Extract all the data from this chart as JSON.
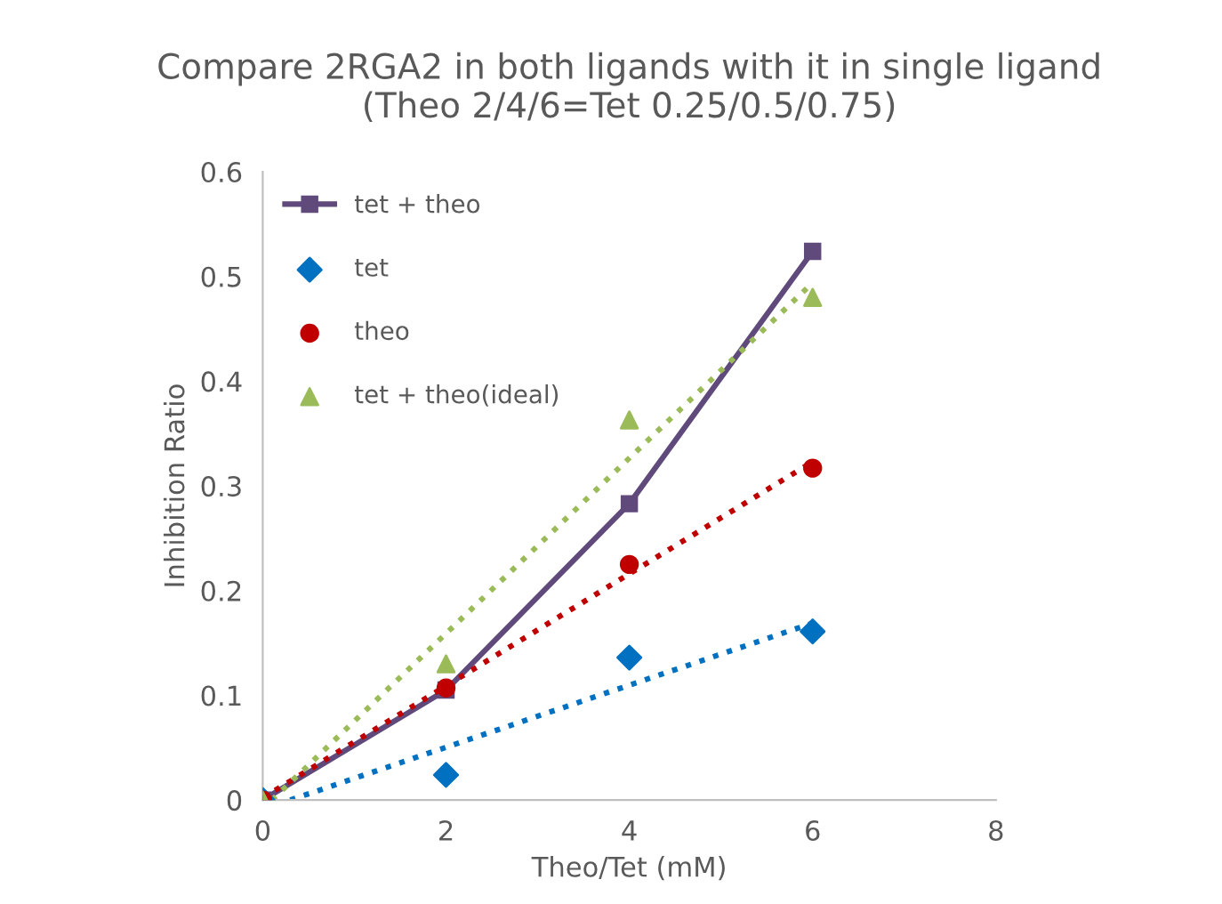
{
  "chart_data": {
    "type": "scatter",
    "title": "Compare 2RGA2 in both ligands with it in single ligand\n(Theo 2/4/6=Tet 0.25/0.5/0.75)",
    "xlabel": "Theo/Tet (mM)",
    "ylabel": "Inhibition Ratio",
    "xlim": [
      0,
      8
    ],
    "xticks": [
      0,
      2,
      4,
      6,
      8
    ],
    "ylim": [
      0,
      0.6
    ],
    "yticks": [
      0,
      0.1,
      0.2,
      0.3,
      0.4,
      0.5,
      0.6
    ],
    "grid": false,
    "legend": "top left",
    "series": [
      {
        "name": "tet + theo",
        "type": "line",
        "marker": "square",
        "line_style": "solid",
        "color": "#604a7b",
        "x": [
          0,
          2,
          4,
          6
        ],
        "values": [
          0,
          0.105,
          0.283,
          0.524
        ]
      },
      {
        "name": "tet",
        "marker": "diamond",
        "color": "#0070c0",
        "x": [
          0,
          2,
          4,
          6
        ],
        "values": [
          0,
          0.024,
          0.136,
          0.161
        ]
      },
      {
        "name": "theo",
        "marker": "circle",
        "color": "#c00000",
        "x": [
          0,
          2,
          4,
          6
        ],
        "values": [
          0,
          0.107,
          0.225,
          0.317
        ]
      },
      {
        "name": "tet + theo(ideal)",
        "marker": "triangle",
        "color": "#9bbb59",
        "x": [
          0,
          2,
          4,
          6
        ],
        "values": [
          0,
          0.13,
          0.363,
          0.48
        ]
      },
      {
        "type": "line",
        "marker": "none",
        "line_style": "dotted",
        "color": "#0070c0",
        "x": [
          0.3,
          6
        ],
        "values": [
          0,
          0.169
        ]
      },
      {
        "type": "line",
        "marker": "none",
        "line_style": "dotted",
        "color": "#c00000",
        "x": [
          0,
          6
        ],
        "values": [
          0.002,
          0.323
        ]
      },
      {
        "type": "line",
        "marker": "none",
        "line_style": "dotted",
        "color": "#9bbb59",
        "x": [
          0.1,
          6
        ],
        "values": [
          0,
          0.494
        ]
      }
    ]
  }
}
